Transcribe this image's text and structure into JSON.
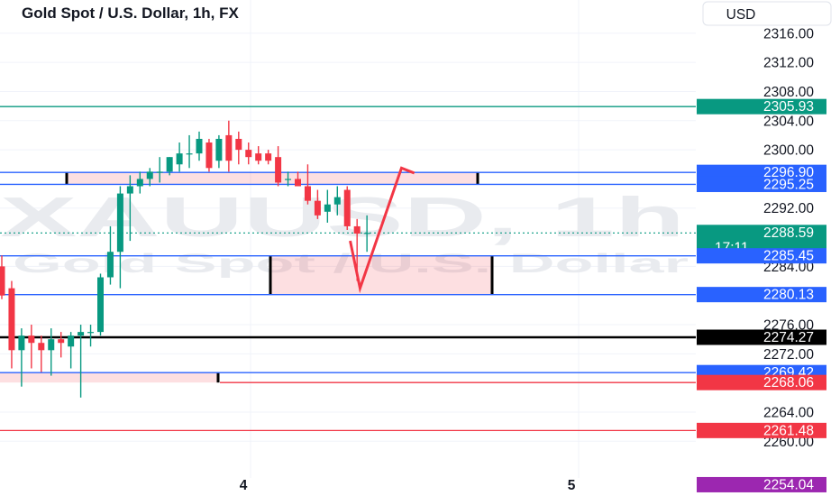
{
  "chart_data": {
    "type": "candlestick",
    "title": "Gold Spot / U.S. Dollar, 1h, FX",
    "watermark": {
      "symbol": "XAUUSD, 1h",
      "name": "Gold Spot / U.S. Dollar"
    },
    "currency": "USD",
    "y_axis": {
      "ticks": [
        "2316.00",
        "2312.00",
        "2308.00",
        "2304.00",
        "2300.00",
        "2292.00",
        "2284.00",
        "2276.00",
        "2272.00",
        "2264.00",
        "2260.00"
      ],
      "ylim": [
        2253,
        2318
      ]
    },
    "x_axis": {
      "ticks": [
        "4",
        "5"
      ]
    },
    "colors": {
      "up": "#089981",
      "down": "#f23645",
      "grid": "#f0f3fa",
      "blue": "#2962ff",
      "green": "#089981",
      "red": "#f23645",
      "purple": "#9c27b0",
      "black": "#000000"
    },
    "levels": [
      {
        "value": 2305.93,
        "label": "2305.93",
        "color": "#089981",
        "line": "green"
      },
      {
        "value": 2296.9,
        "label": "2296.90",
        "color": "#2962ff",
        "line": "blue"
      },
      {
        "value": 2295.25,
        "label": "2295.25",
        "color": "#2962ff",
        "line": "blue"
      },
      {
        "value": 2288.59,
        "label": "2288.59",
        "color": "#089981",
        "line": "dotted-green",
        "countdown": "17:11"
      },
      {
        "value": 2285.45,
        "label": "2285.45",
        "color": "#2962ff",
        "line": "blue"
      },
      {
        "value": 2280.13,
        "label": "2280.13",
        "color": "#2962ff",
        "line": "blue"
      },
      {
        "value": 2274.27,
        "label": "2274.27",
        "color": "#000000",
        "line": "black"
      },
      {
        "value": 2269.42,
        "label": "2269.42",
        "color": "#2962ff",
        "line": "blue"
      },
      {
        "value": 2268.06,
        "label": "2268.06",
        "color": "#f23645",
        "line": "red"
      },
      {
        "value": 2261.48,
        "label": "2261.48",
        "color": "#f23645",
        "line": "red"
      },
      {
        "value": 2254.04,
        "label": "2254.04",
        "color": "#9c27b0",
        "line": "none"
      }
    ],
    "zones": [
      {
        "name": "upper-supply-zone",
        "from": 2295.25,
        "to": 2296.9
      },
      {
        "name": "lower-demand-zone",
        "from": 2280.13,
        "to": 2285.45
      },
      {
        "name": "bottom-demand-zone",
        "from": 2268.06,
        "to": 2269.42
      }
    ],
    "candles": [
      {
        "o": 2284.0,
        "h": 2285.5,
        "l": 2279.5,
        "c": 2280.0
      },
      {
        "o": 2281.0,
        "h": 2282.0,
        "l": 2270.0,
        "c": 2272.5
      },
      {
        "o": 2272.5,
        "h": 2275.5,
        "l": 2267.5,
        "c": 2274.5
      },
      {
        "o": 2274.5,
        "h": 2276.0,
        "l": 2270.0,
        "c": 2273.5
      },
      {
        "o": 2273.5,
        "h": 2274.5,
        "l": 2269.5,
        "c": 2272.5
      },
      {
        "o": 2272.5,
        "h": 2275.5,
        "l": 2269.0,
        "c": 2274.0
      },
      {
        "o": 2274.0,
        "h": 2275.0,
        "l": 2271.5,
        "c": 2273.5
      },
      {
        "o": 2273.0,
        "h": 2275.0,
        "l": 2270.0,
        "c": 2274.5
      },
      {
        "o": 2274.5,
        "h": 2276.0,
        "l": 2266.0,
        "c": 2275.0
      },
      {
        "o": 2275.0,
        "h": 2276.0,
        "l": 2273.0,
        "c": 2275.0
      },
      {
        "o": 2275.0,
        "h": 2283.0,
        "l": 2274.5,
        "c": 2282.5
      },
      {
        "o": 2282.5,
        "h": 2289.5,
        "l": 2281.5,
        "c": 2286.0
      },
      {
        "o": 2286.0,
        "h": 2295.0,
        "l": 2281.0,
        "c": 2294.0
      },
      {
        "o": 2294.0,
        "h": 2296.5,
        "l": 2287.5,
        "c": 2295.0
      },
      {
        "o": 2295.0,
        "h": 2297.0,
        "l": 2294.0,
        "c": 2296.0
      },
      {
        "o": 2296.0,
        "h": 2297.5,
        "l": 2295.0,
        "c": 2297.0
      },
      {
        "o": 2297.0,
        "h": 2299.0,
        "l": 2295.5,
        "c": 2297.0
      },
      {
        "o": 2297.0,
        "h": 2299.0,
        "l": 2296.5,
        "c": 2299.0
      },
      {
        "o": 2298.0,
        "h": 2301.0,
        "l": 2297.0,
        "c": 2299.5
      },
      {
        "o": 2299.5,
        "h": 2302.0,
        "l": 2297.5,
        "c": 2299.5
      },
      {
        "o": 2299.5,
        "h": 2302.5,
        "l": 2298.5,
        "c": 2301.5
      },
      {
        "o": 2301.0,
        "h": 2301.5,
        "l": 2297.0,
        "c": 2297.5
      },
      {
        "o": 2298.5,
        "h": 2302.0,
        "l": 2297.5,
        "c": 2301.5
      },
      {
        "o": 2302.0,
        "h": 2304.0,
        "l": 2297.0,
        "c": 2298.5
      },
      {
        "o": 2301.5,
        "h": 2302.5,
        "l": 2298.0,
        "c": 2300.0
      },
      {
        "o": 2300.0,
        "h": 2301.0,
        "l": 2298.0,
        "c": 2299.0
      },
      {
        "o": 2299.5,
        "h": 2300.5,
        "l": 2298.0,
        "c": 2298.5
      },
      {
        "o": 2299.5,
        "h": 2300.0,
        "l": 2298.0,
        "c": 2298.5
      },
      {
        "o": 2299.0,
        "h": 2300.5,
        "l": 2295.0,
        "c": 2295.5
      },
      {
        "o": 2296.0,
        "h": 2297.0,
        "l": 2295.0,
        "c": 2296.0
      },
      {
        "o": 2296.0,
        "h": 2297.0,
        "l": 2295.0,
        "c": 2295.0
      },
      {
        "o": 2295.0,
        "h": 2298.0,
        "l": 2292.5,
        "c": 2293.0
      },
      {
        "o": 2293.0,
        "h": 2294.5,
        "l": 2290.5,
        "c": 2291.0
      },
      {
        "o": 2291.5,
        "h": 2294.5,
        "l": 2290.0,
        "c": 2292.5
      },
      {
        "o": 2292.5,
        "h": 2295.0,
        "l": 2291.0,
        "c": 2293.5
      },
      {
        "o": 2294.5,
        "h": 2295.0,
        "l": 2289.0,
        "c": 2289.5
      },
      {
        "o": 2289.5,
        "h": 2290.5,
        "l": 2282.0,
        "c": 2288.5
      },
      {
        "o": 2288.5,
        "h": 2291.0,
        "l": 2286.0,
        "c": 2288.6
      }
    ],
    "projection": {
      "color": "#f23645",
      "points": [
        [
          35.3,
          2287.5
        ],
        [
          36.3,
          2281.0
        ],
        [
          40.5,
          2297.5
        ],
        [
          41.8,
          2296.8
        ]
      ]
    }
  }
}
